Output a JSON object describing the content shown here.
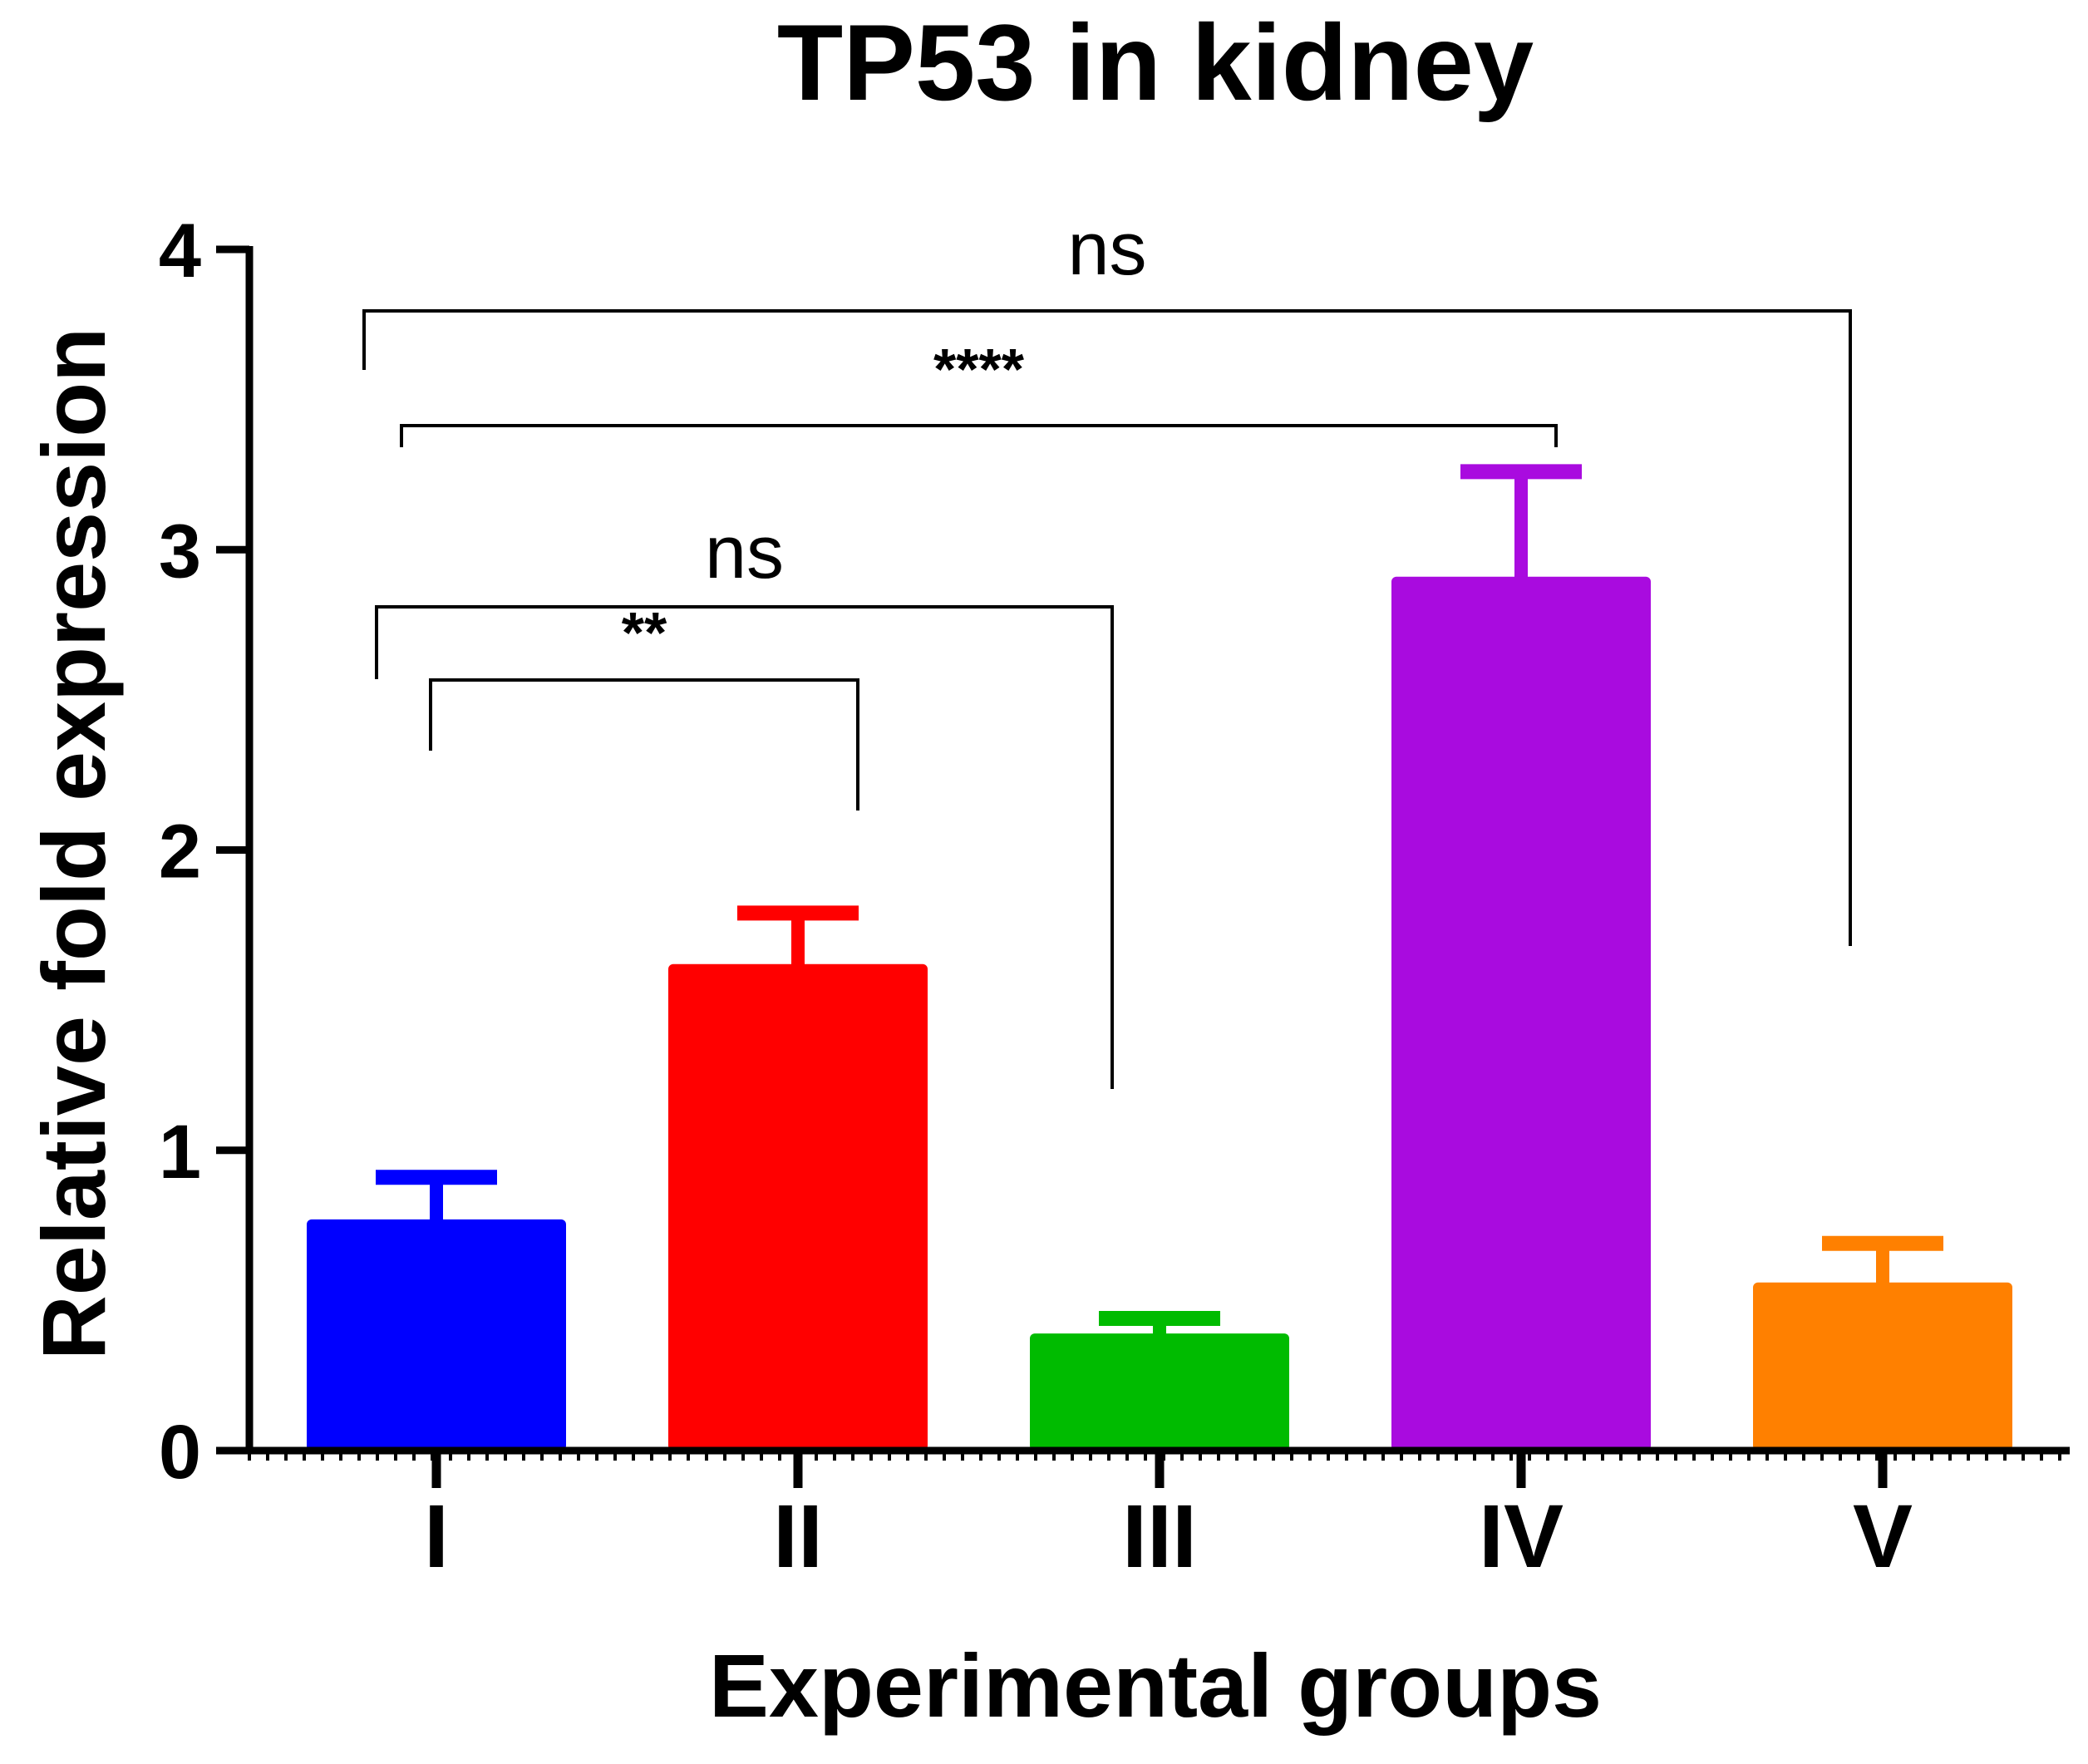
{
  "chart_data": {
    "type": "bar",
    "title": "TP53 in kidney",
    "xlabel": "Experimental groups",
    "ylabel": "Relative fold expression",
    "categories": [
      "I",
      "II",
      "III",
      "IV",
      "V"
    ],
    "values": [
      0.77,
      1.62,
      0.39,
      2.91,
      0.56
    ],
    "errors": [
      0.14,
      0.17,
      0.05,
      0.35,
      0.13
    ],
    "colors": [
      "#0000ff",
      "#ff0000",
      "#00bb00",
      "#a90bdf",
      "#ff8000"
    ],
    "ylim": [
      0,
      4
    ],
    "yticks": [
      "0",
      "1",
      "2",
      "3",
      "4"
    ],
    "grid": false,
    "comparisons": [
      {
        "from": "I",
        "to": "II",
        "label": "**"
      },
      {
        "from": "I",
        "to": "III",
        "label": "ns"
      },
      {
        "from": "I",
        "to": "IV",
        "label": "****"
      },
      {
        "from": "I",
        "to": "V",
        "label": "ns"
      }
    ]
  }
}
